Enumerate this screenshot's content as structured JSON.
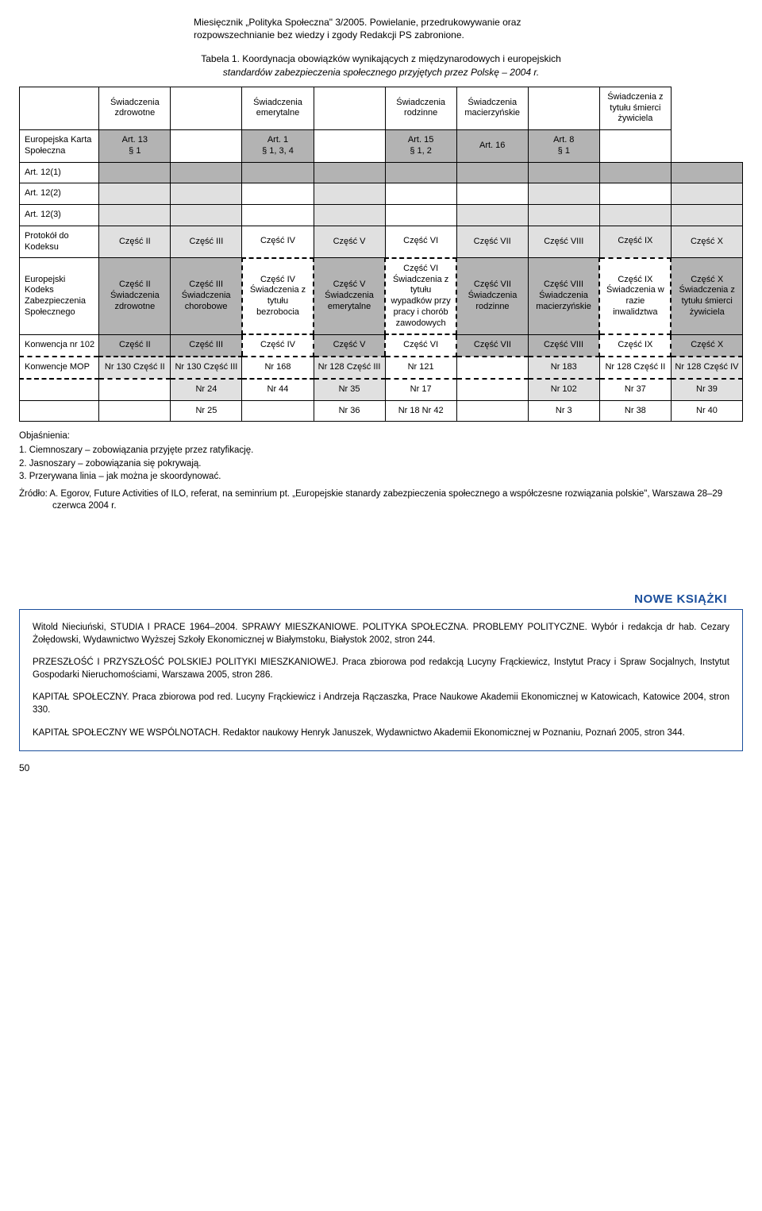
{
  "header_note": "Miesięcznik „Polityka Społeczna\" 3/2005. Powielanie, przedrukowywanie oraz rozpowszechnianie bez wiedzy i zgody Redakcji PS zabronione.",
  "caption_line1": "Tabela 1. Koordynacja obowiązków wynikających z międzynarodowych i europejskich",
  "caption_line2": "standardów zabezpieczenia społecznego przyjętych przez Polskę – 2004 r.",
  "hdr": {
    "c1": "Świadczenia zdrowotne",
    "c3": "Świadczenia emerytalne",
    "c5": "Świadczenia rodzinne",
    "c6": "Świadczenia macierzyńskie",
    "c8": "Świadczenia z tytułu śmierci żywiciela"
  },
  "eks": {
    "label": "Europejska Karta Społeczna",
    "c1a": "Art. 13",
    "c1b": "§ 1",
    "c3a": "Art. 1",
    "c3b": "§ 1, 3, 4",
    "c5a": "Art. 15",
    "c5b": "§ 1, 2",
    "c6": "Art. 16",
    "c7a": "Art. 8",
    "c7b": "§ 1"
  },
  "art121": "Art. 12(1)",
  "art122": "Art. 12(2)",
  "art123": "Art. 12(3)",
  "protokol": {
    "label": "Protokół do Kodeksu",
    "c1": "Część II",
    "c2": "Część III",
    "c3": "Część IV",
    "c4": "Część V",
    "c5": "Część VI",
    "c6": "Część VII",
    "c7": "Część VIII",
    "c8": "Część IX",
    "c9": "Część X"
  },
  "ekzs": {
    "label": "Europejski Kodeks Zabezpieczenia Społecznego",
    "c1": "Część II Świadczenia zdrowotne",
    "c2": "Część III Świadczenia chorobowe",
    "c3": "Część IV Świadczenia z tytułu bezrobocia",
    "c4": "Część V Świadczenia emerytalne",
    "c5": "Część VI Świadczenia z tytułu wypadków przy pracy i chorób zawodowych",
    "c6": "Część VII Świadczenia rodzinne",
    "c7": "Część VIII Świadczenia macierzyńskie",
    "c8": "Część IX Świadczenia w razie inwalidztwa",
    "c9": "Część X Świadczenia z tytułu śmierci żywiciela"
  },
  "konw102": {
    "label": "Konwencja nr 102",
    "c1": "Część II",
    "c2": "Część III",
    "c3": "Część IV",
    "c4": "Część V",
    "c5": "Część VI",
    "c6": "Część VII",
    "c7": "Część VIII",
    "c8": "Część IX",
    "c9": "Część X"
  },
  "mop": {
    "label": "Konwencje MOP",
    "c1": "Nr 130 Część II",
    "c2": "Nr 130 Część III",
    "c3": "Nr 168",
    "c4": "Nr 128 Część III",
    "c5": "Nr 121",
    "c7": "Nr 183",
    "c8": "Nr 128 Część II",
    "c9": "Nr 128 Część IV"
  },
  "rowA": {
    "c2": "Nr 24",
    "c3": "Nr 44",
    "c4": "Nr 35",
    "c5": "Nr 17",
    "c7": "Nr 102",
    "c8": "Nr 37",
    "c9": "Nr 39"
  },
  "rowB": {
    "c2": "Nr 25",
    "c4": "Nr 36",
    "c5": "Nr 18 Nr 42",
    "c7": "Nr 3",
    "c8": "Nr 38",
    "c9": "Nr 40"
  },
  "explain": {
    "title": "Objaśnienia:",
    "l1": "1.  Ciemnoszary – zobowiązania przyjęte przez ratyfikację.",
    "l2": "2.  Jasnoszary – zobowiązania się pokrywają.",
    "l3": "3.  Przerywana linia – jak można je skoordynować."
  },
  "source": "Żródło: A. Egorov, Future Activities of ILO, referat, na seminrium pt. „Europejskie stanardy zabezpieczenia społecznego a współczesne rozwiązania polskie\", Warszawa 28–29 czerwca 2004 r.",
  "books_title": "NOWE KSIĄŻKI",
  "books": {
    "b1": "Witold Nieciuński, STUDIA I PRACE 1964–2004. SPRAWY MIESZKANIOWE. POLITYKA SPOŁECZNA. PROBLEMY POLITYCZNE. Wybór i redakcja dr hab. Cezary Żołędowski, Wydawnictwo Wyższej Szkoły Ekonomicznej w Białymstoku, Białystok 2002, stron 244.",
    "b2": "PRZESZŁOŚĆ I PRZYSZŁOŚĆ POLSKIEJ POLITYKI MIESZKANIOWEJ. Praca zbiorowa pod redakcją Lucyny Frąckiewicz, Instytut Pracy i Spraw Socjalnych, Instytut Gospodarki Nieruchomościami, Warszawa 2005, stron 286.",
    "b3": "KAPITAŁ SPOŁECZNY. Praca zbiorowa pod red. Lucyny Frąckiewicz i Andrzeja Rączaszka, Prace Naukowe Akademii Ekonomicznej w Katowicach, Katowice 2004, stron 330.",
    "b4": "KAPITAŁ SPOŁECZNY WE WSPÓLNOTACH. Redaktor naukowy Henryk Januszek, Wydawnictwo Akademii Ekonomicznej w Poznaniu, Poznań 2005, stron 344."
  },
  "page": "50"
}
